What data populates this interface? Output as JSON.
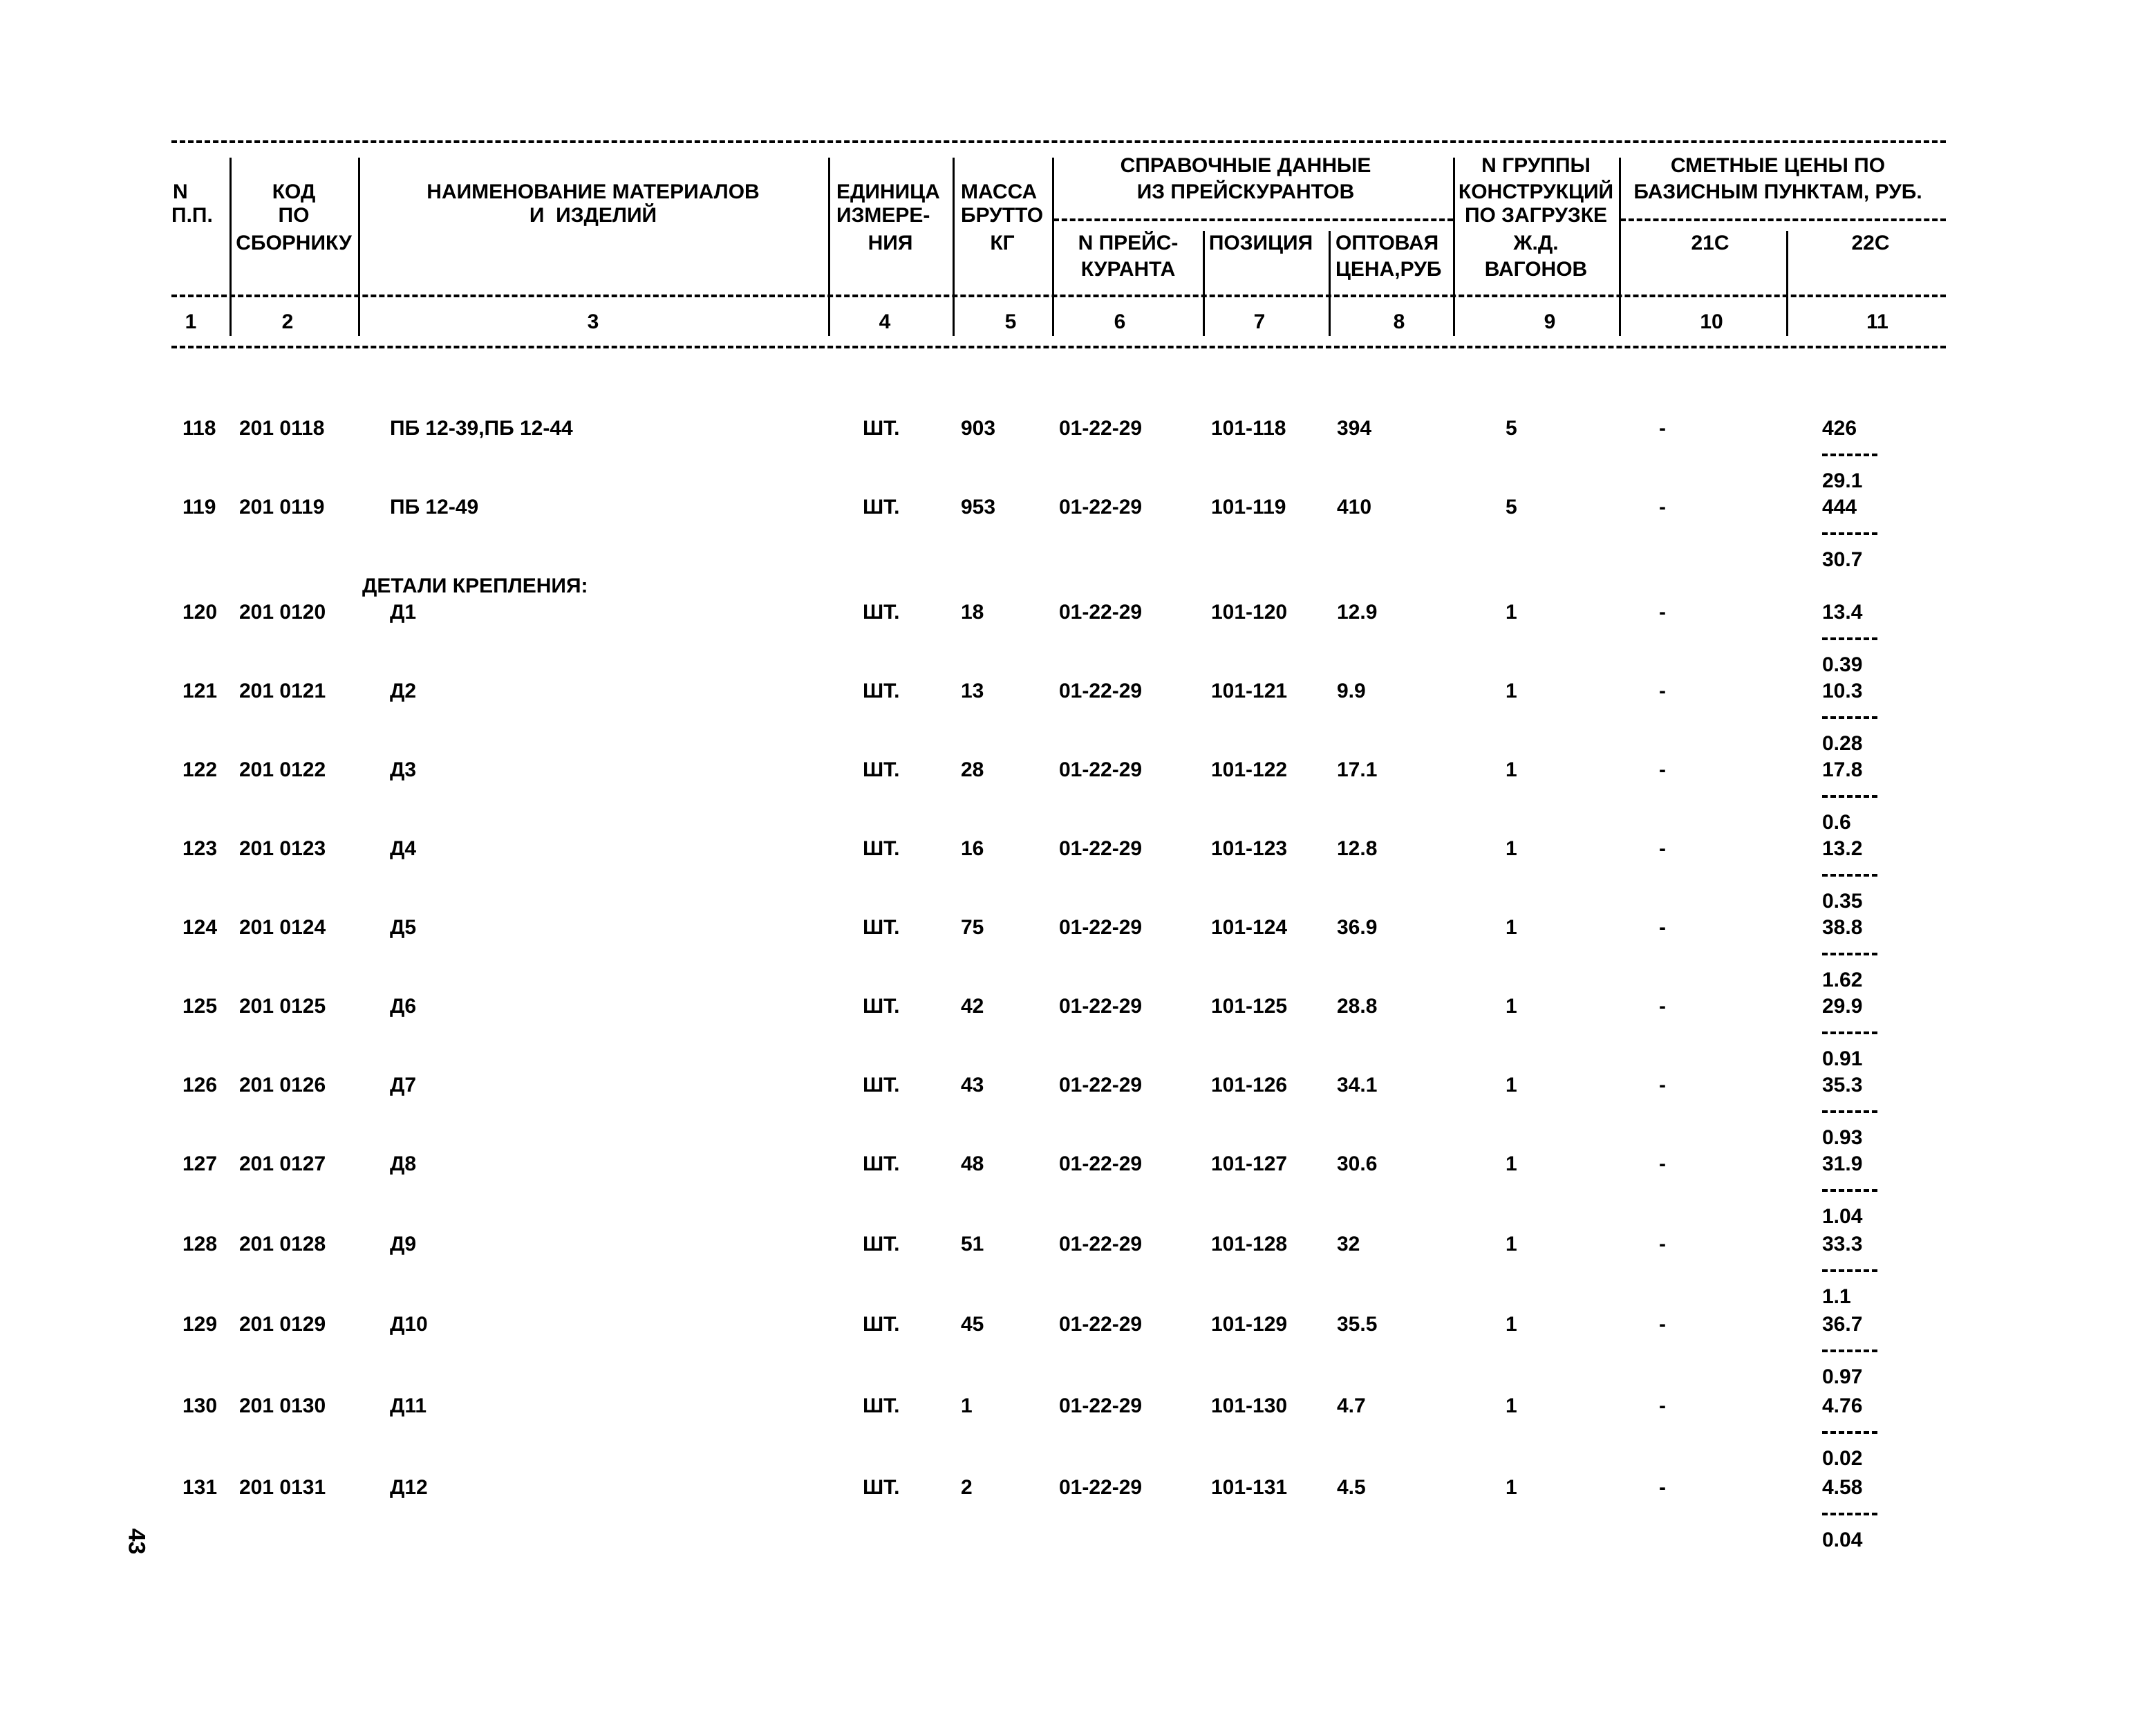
{
  "header": {
    "col1": [
      "N",
      "П.П."
    ],
    "col2": [
      "КОД",
      "ПО",
      "СБОРНИКУ"
    ],
    "col3": [
      "НАИМЕНОВАНИЕ МАТЕРИАЛОВ",
      "И  ИЗДЕЛИЙ"
    ],
    "col4": [
      "ЕДИНИЦА",
      "ИЗМЕРЕ-",
      "НИЯ"
    ],
    "col5": [
      "МАССА",
      "БРУТТО",
      "КГ"
    ],
    "group_ref": [
      "СПРАВОЧНЫЕ ДАННЫЕ",
      "ИЗ ПРЕЙСКУРАНТОВ"
    ],
    "col6": [
      "N ПРЕЙС-",
      "КУРАНТА"
    ],
    "col7": [
      "ПОЗИЦИЯ"
    ],
    "col8": [
      "ОПТОВАЯ",
      "ЦЕНА,РУБ"
    ],
    "col9": [
      "N ГРУППЫ",
      "КОНСТРУКЦИЙ",
      "ПО ЗАГРУЗКЕ",
      "Ж.Д.",
      "ВАГОНОВ"
    ],
    "group_prices": [
      "СМЕТНЫЕ ЦЕНЫ ПО",
      "БАЗИСНЫМ ПУНКТАМ, РУБ."
    ],
    "col10": [
      "21С"
    ],
    "col11": [
      "22С"
    ],
    "numbers": [
      "1",
      "2",
      "3",
      "4",
      "5",
      "6",
      "7",
      "8",
      "9",
      "10",
      "11"
    ]
  },
  "section_label": "ДЕТАЛИ КРЕПЛЕНИЯ:",
  "rows": [
    {
      "n": "118",
      "code": "201 0118",
      "name": "ПБ 12-39,ПБ 12-44",
      "unit": "ШТ.",
      "mass": "903",
      "pk": "01-22-29",
      "pos": "101-118",
      "price": "394",
      "group": "5",
      "p21": "-",
      "p22": "426",
      "p22b": "29.1"
    },
    {
      "n": "119",
      "code": "201 0119",
      "name": "ПБ 12-49",
      "unit": "ШТ.",
      "mass": "953",
      "pk": "01-22-29",
      "pos": "101-119",
      "price": "410",
      "group": "5",
      "p21": "-",
      "p22": "444",
      "p22b": "30.7"
    },
    {
      "n": "120",
      "code": "201 0120",
      "name": "Д1",
      "unit": "ШТ.",
      "mass": "18",
      "pk": "01-22-29",
      "pos": "101-120",
      "price": "12.9",
      "group": "1",
      "p21": "-",
      "p22": "13.4",
      "p22b": "0.39"
    },
    {
      "n": "121",
      "code": "201 0121",
      "name": "Д2",
      "unit": "ШТ.",
      "mass": "13",
      "pk": "01-22-29",
      "pos": "101-121",
      "price": "9.9",
      "group": "1",
      "p21": "-",
      "p22": "10.3",
      "p22b": "0.28"
    },
    {
      "n": "122",
      "code": "201 0122",
      "name": "Д3",
      "unit": "ШТ.",
      "mass": "28",
      "pk": "01-22-29",
      "pos": "101-122",
      "price": "17.1",
      "group": "1",
      "p21": "-",
      "p22": "17.8",
      "p22b": "0.6"
    },
    {
      "n": "123",
      "code": "201 0123",
      "name": "Д4",
      "unit": "ШТ.",
      "mass": "16",
      "pk": "01-22-29",
      "pos": "101-123",
      "price": "12.8",
      "group": "1",
      "p21": "-",
      "p22": "13.2",
      "p22b": "0.35"
    },
    {
      "n": "124",
      "code": "201 0124",
      "name": "Д5",
      "unit": "ШТ.",
      "mass": "75",
      "pk": "01-22-29",
      "pos": "101-124",
      "price": "36.9",
      "group": "1",
      "p21": "-",
      "p22": "38.8",
      "p22b": "1.62"
    },
    {
      "n": "125",
      "code": "201 0125",
      "name": "Д6",
      "unit": "ШТ.",
      "mass": "42",
      "pk": "01-22-29",
      "pos": "101-125",
      "price": "28.8",
      "group": "1",
      "p21": "-",
      "p22": "29.9",
      "p22b": "0.91"
    },
    {
      "n": "126",
      "code": "201 0126",
      "name": "Д7",
      "unit": "ШТ.",
      "mass": "43",
      "pk": "01-22-29",
      "pos": "101-126",
      "price": "34.1",
      "group": "1",
      "p21": "-",
      "p22": "35.3",
      "p22b": "0.93"
    },
    {
      "n": "127",
      "code": "201 0127",
      "name": "Д8",
      "unit": "ШТ.",
      "mass": "48",
      "pk": "01-22-29",
      "pos": "101-127",
      "price": "30.6",
      "group": "1",
      "p21": "-",
      "p22": "31.9",
      "p22b": "1.04"
    },
    {
      "n": "128",
      "code": "201 0128",
      "name": "Д9",
      "unit": "ШТ.",
      "mass": "51",
      "pk": "01-22-29",
      "pos": "101-128",
      "price": "32",
      "group": "1",
      "p21": "-",
      "p22": "33.3",
      "p22b": "1.1"
    },
    {
      "n": "129",
      "code": "201 0129",
      "name": "Д10",
      "unit": "ШТ.",
      "mass": "45",
      "pk": "01-22-29",
      "pos": "101-129",
      "price": "35.5",
      "group": "1",
      "p21": "-",
      "p22": "36.7",
      "p22b": "0.97"
    },
    {
      "n": "130",
      "code": "201 0130",
      "name": "Д11",
      "unit": "ШТ.",
      "mass": "1",
      "pk": "01-22-29",
      "pos": "101-130",
      "price": "4.7",
      "group": "1",
      "p21": "-",
      "p22": "4.76",
      "p22b": "0.02"
    },
    {
      "n": "131",
      "code": "201 0131",
      "name": "Д12",
      "unit": "ШТ.",
      "mass": "2",
      "pk": "01-22-29",
      "pos": "101-131",
      "price": "4.5",
      "group": "1",
      "p21": "-",
      "p22": "4.58",
      "p22b": "0.04"
    }
  ],
  "page_number": "43"
}
